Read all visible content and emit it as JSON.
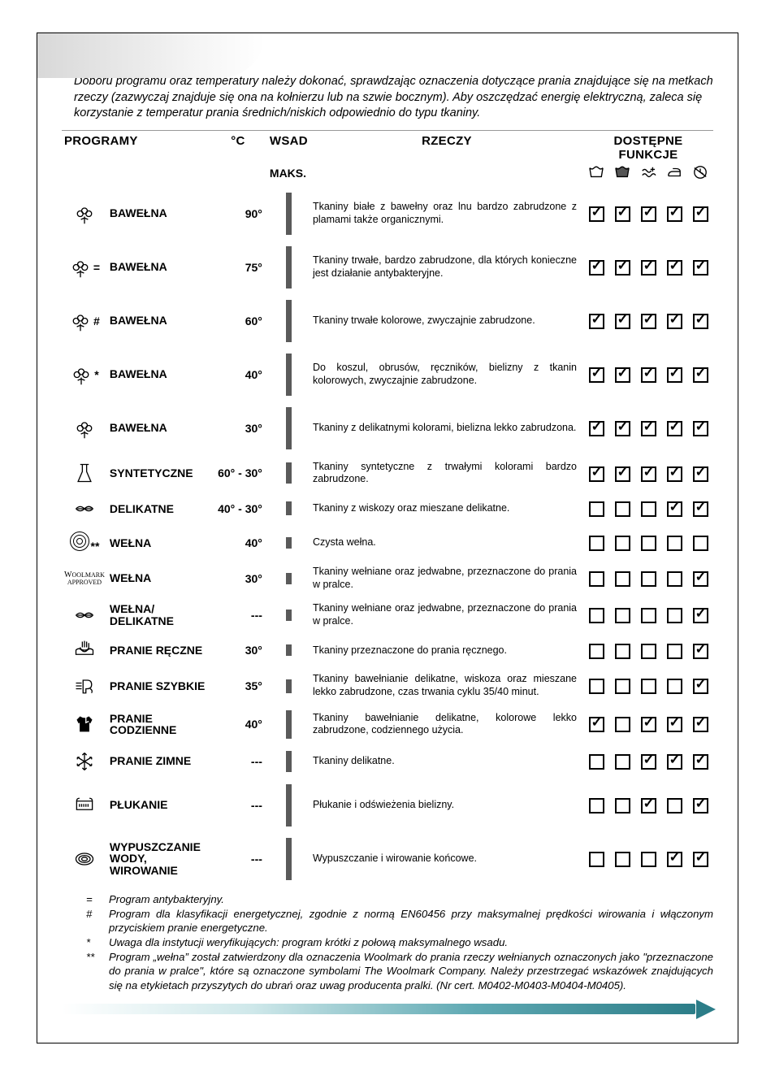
{
  "intro": "Doboru programu oraz temperatury należy dokonać, sprawdzając oznaczenia dotyczące prania znajdujące się na metkach rzeczy (zazwyczaj znajduje się ona na kołnierzu lub na szwie bocznym). Aby oszczędzać energię elektryczną, zaleca się korzystanie z temperatur prania średnich/niskich odpowiednio do typu tkaniny.",
  "headers": {
    "program": "PROGRAMY",
    "temp": "°C",
    "load": "WSAD",
    "load_sub": "MAKS.",
    "desc": "RZECZY",
    "funcs": "DOSTĘPNE FUNKCJE"
  },
  "func_icons": [
    "prewash-icon",
    "stain-icon",
    "aquaplus-icon",
    "iron-icon",
    "delay-icon"
  ],
  "rows": [
    {
      "icon": "cotton",
      "annot": "",
      "name": "BAWEŁNA",
      "temp": "90°",
      "load": "100",
      "desc": "Tkaniny białe z bawełny oraz lnu bardzo zabrudzone z plamami także organicznymi.",
      "funcs": [
        true,
        true,
        true,
        true,
        true
      ]
    },
    {
      "icon": "cotton",
      "annot": "=",
      "name": "BAWEŁNA",
      "temp": "75°",
      "load": "100",
      "desc": "Tkaniny trwałe, bardzo zabrudzone, dla których konieczne jest działanie antybakteryjne.",
      "funcs": [
        true,
        true,
        true,
        true,
        true
      ]
    },
    {
      "icon": "cotton",
      "annot": "#",
      "name": "BAWEŁNA",
      "temp": "60°",
      "load": "100",
      "desc": "Tkaniny trwałe kolorowe, zwyczajnie zabrudzone.",
      "funcs": [
        true,
        true,
        true,
        true,
        true
      ]
    },
    {
      "icon": "cotton",
      "annot": "*",
      "name": "BAWEŁNA",
      "temp": "40°",
      "load": "100",
      "desc": "Do koszul, obrusów, ręczników, bielizny z tkanin kolorowych, zwyczajnie zabrudzone.",
      "funcs": [
        true,
        true,
        true,
        true,
        true
      ]
    },
    {
      "icon": "cotton",
      "annot": "",
      "name": "BAWEŁNA",
      "temp": "30°",
      "load": "100",
      "desc": "Tkaniny z delikatnymi kolorami, bielizna lekko zabrudzona.",
      "funcs": [
        true,
        true,
        true,
        true,
        true
      ]
    },
    {
      "icon": "flask",
      "annot": "",
      "name": "SYNTETYCZNE",
      "temp": "60° - 30°",
      "load": "50",
      "desc": "Tkaniny syntetyczne z trwałymi kolorami bardzo zabrudzone.",
      "funcs": [
        true,
        true,
        true,
        true,
        true
      ]
    },
    {
      "icon": "feather",
      "annot": "",
      "name": "DELIKATNE",
      "temp": "40° - 30°",
      "load": "33",
      "desc": "Tkaniny z wiskozy oraz mieszane delikatne.",
      "funcs": [
        false,
        false,
        false,
        true,
        true
      ]
    },
    {
      "icon": "wool",
      "annot": "**",
      "name": "WEŁNA",
      "temp": "40°",
      "load": "25",
      "desc": "Czysta wełna.",
      "funcs": [
        false,
        false,
        false,
        false,
        false
      ]
    },
    {
      "icon": "woolmark",
      "annot": "",
      "name": "WEŁNA",
      "temp": "30°",
      "load": "25",
      "desc": "Tkaniny wełniane oraz jedwabne, przeznaczone do prania w pralce.",
      "funcs": [
        false,
        false,
        false,
        false,
        true
      ]
    },
    {
      "icon": "feather",
      "annot": "",
      "name": "WEŁNA/ DELIKATNE",
      "temp": "---",
      "load": "25",
      "desc": "Tkaniny wełniane oraz jedwabne, przeznaczone do prania w pralce.",
      "funcs": [
        false,
        false,
        false,
        false,
        true
      ]
    },
    {
      "icon": "hand",
      "annot": "",
      "name": "PRANIE RĘCZNE",
      "temp": "30°",
      "load": "25",
      "desc": "Tkaniny przeznaczone do prania ręcznego.",
      "funcs": [
        false,
        false,
        false,
        false,
        true
      ]
    },
    {
      "icon": "rapid",
      "annot": "",
      "name": "PRANIE SZYBKIE",
      "temp": "35°",
      "load": "33",
      "desc": "Tkaniny bawełnianie delikatne, wiskoza oraz mieszane lekko zabrudzone, czas trwania cyklu 35/40 minut.",
      "funcs": [
        false,
        false,
        false,
        false,
        true
      ]
    },
    {
      "icon": "shirt",
      "annot": "",
      "name": "PRANIE CODZIENNE",
      "temp": "40°",
      "load": "66",
      "desc": "Tkaniny bawełnianie delikatne, kolorowe lekko zabrudzone, codziennego użycia.",
      "funcs": [
        true,
        false,
        true,
        true,
        true
      ]
    },
    {
      "icon": "cold",
      "annot": "",
      "name": "PRANIE ZIMNE",
      "temp": "---",
      "load": "50",
      "desc": "Tkaniny delikatne.",
      "funcs": [
        false,
        false,
        true,
        true,
        true
      ]
    },
    {
      "icon": "rinse",
      "annot": "",
      "name": "PŁUKANIE",
      "temp": "---",
      "load": "100",
      "desc": "Płukanie i odświeżenia bielizny.",
      "funcs": [
        false,
        false,
        true,
        false,
        true
      ]
    },
    {
      "icon": "spin",
      "annot": "",
      "name": "WYPUSZCZANIE WODY, WIROWANIE",
      "temp": "---",
      "load": "100",
      "desc": "Wypuszczanie i wirowanie końcowe.",
      "funcs": [
        false,
        false,
        false,
        true,
        true
      ]
    }
  ],
  "notes": [
    {
      "sym": "=",
      "txt": "Program antybakteryjny."
    },
    {
      "sym": "#",
      "txt": "Program dla klasyfikacji energetycznej, zgodnie z normą EN60456 przy maksymalnej prędkości wirowania i włączonym przyciskiem pranie energetyczne."
    },
    {
      "sym": "*",
      "txt": "Uwaga dla instytucji weryfikujących: program krótki z połową maksymalnego wsadu."
    },
    {
      "sym": "**",
      "txt": "Program „wełna” został zatwierdzony dla oznaczenia Woolmark do prania rzeczy wełnianych oznaczonych jako \"przeznaczone do prania w pralce\", które są oznaczone symbolami The Woolmark Company. Należy przestrzegać wskazówek znajdujących się na etykietach przyszytych do ubrań oraz uwag producenta pralki. (Nr cert. M0402-M0403-M0404-M0405)."
    }
  ],
  "woolmark_label_top": "WOOLMARK",
  "woolmark_label_bot": "APPROVED"
}
